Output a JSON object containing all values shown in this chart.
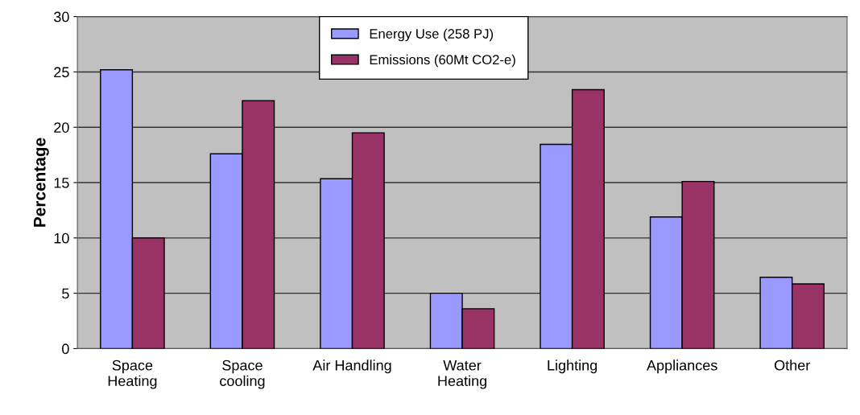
{
  "chart_data": {
    "type": "bar",
    "ylabel": "Percentage",
    "categories": [
      "Space\nHeating",
      "Space\ncooling",
      "Air Handling",
      "Water\nHeating",
      "Lighting",
      "Appliances",
      "Other"
    ],
    "series": [
      {
        "name": "Energy Use (258 PJ)",
        "color": "#9999ff",
        "values": [
          25.2,
          17.6,
          15.35,
          5.0,
          18.45,
          11.9,
          6.45
        ]
      },
      {
        "name": "Emissions (60Mt CO2-e)",
        "color": "#993366",
        "values": [
          10.0,
          22.4,
          19.5,
          3.6,
          23.4,
          15.1,
          5.85
        ]
      }
    ],
    "ylim": [
      0,
      30
    ],
    "yticks": [
      0,
      5,
      10,
      15,
      20,
      25,
      30
    ],
    "grid": "y",
    "legend": "top"
  }
}
